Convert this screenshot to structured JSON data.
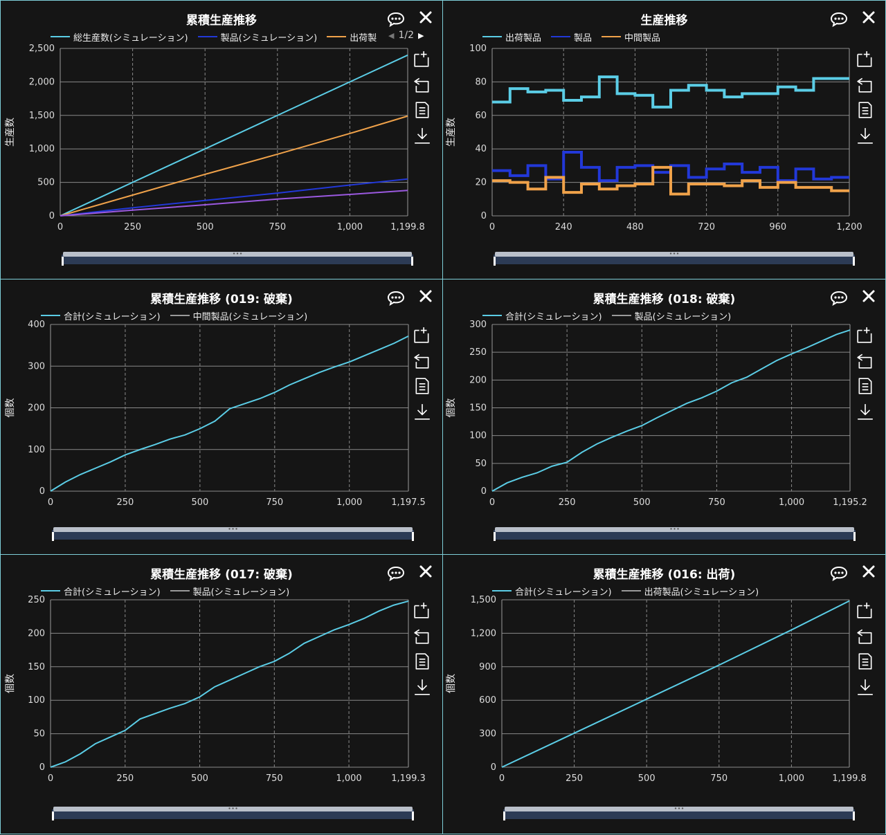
{
  "panels": [
    {
      "title": "累積生産推移",
      "legend": [
        {
          "label": "総生産数(シミュレーション)",
          "color": "#5bcde6"
        },
        {
          "label": "製品(シミュレーション)",
          "color": "#2238d8"
        },
        {
          "label": "出荷製",
          "color": "#f0a24a"
        }
      ],
      "pager": "1/2"
    },
    {
      "title": "生産推移",
      "legend": [
        {
          "label": "出荷製品",
          "color": "#5bcde6"
        },
        {
          "label": "製品",
          "color": "#2238d8"
        },
        {
          "label": "中間製品",
          "color": "#f0a24a"
        }
      ]
    },
    {
      "title": "累積生産推移 (019: 破棄)",
      "legend": [
        {
          "label": "合計(シミュレーション)",
          "color": "#5bcde6"
        },
        {
          "label": "中間製品(シミュレーション)",
          "color": "#9a9a9a"
        }
      ]
    },
    {
      "title": "累積生産推移 (018: 破棄)",
      "legend": [
        {
          "label": "合計(シミュレーション)",
          "color": "#5bcde6"
        },
        {
          "label": "製品(シミュレーション)",
          "color": "#9a9a9a"
        }
      ]
    },
    {
      "title": "累積生産推移 (017: 破棄)",
      "legend": [
        {
          "label": "合計(シミュレーション)",
          "color": "#5bcde6"
        },
        {
          "label": "製品(シミュレーション)",
          "color": "#9a9a9a"
        }
      ]
    },
    {
      "title": "累積生産推移 (016: 出荷)",
      "legend": [
        {
          "label": "合計(シミュレーション)",
          "color": "#5bcde6"
        },
        {
          "label": "出荷製品(シミュレーション)",
          "color": "#9a9a9a"
        }
      ]
    }
  ],
  "chart_data": [
    {
      "type": "line",
      "title": "累積生産推移",
      "ylabel": "生産数",
      "xlim": [
        0,
        1199.8
      ],
      "ylim": [
        0,
        2500
      ],
      "xticks": [
        0,
        250,
        500,
        750,
        1000,
        1199.8
      ],
      "xtick_labels": [
        "0",
        "250",
        "500",
        "750",
        "1,000",
        "1,199.8"
      ],
      "yticks": [
        0,
        500,
        1000,
        1500,
        2000,
        2500
      ],
      "ytick_labels": [
        "0",
        "500",
        "1,000",
        "1,500",
        "2,000",
        "2,500"
      ],
      "series": [
        {
          "name": "総生産数(シミュレーション)",
          "color": "#5bcde6",
          "x": [
            0,
            1199.8
          ],
          "y": [
            0,
            2400
          ]
        },
        {
          "name": "出荷製",
          "color": "#f0a24a",
          "x": [
            0,
            250,
            500,
            750,
            1000,
            1199.8
          ],
          "y": [
            0,
            310,
            620,
            920,
            1230,
            1490
          ]
        },
        {
          "name": "製品(シミュレーション)",
          "color": "#2238d8",
          "x": [
            0,
            250,
            500,
            750,
            1000,
            1199.8
          ],
          "y": [
            0,
            120,
            230,
            340,
            460,
            550
          ]
        },
        {
          "color": "#9b59e0",
          "x": [
            0,
            250,
            500,
            750,
            1000,
            1199.8
          ],
          "y": [
            0,
            85,
            165,
            250,
            320,
            380
          ]
        }
      ]
    },
    {
      "type": "line",
      "title": "生産推移",
      "ylabel": "生産数",
      "step": true,
      "xlim": [
        0,
        1200
      ],
      "ylim": [
        0,
        100
      ],
      "xticks": [
        0,
        240,
        480,
        720,
        960,
        1200
      ],
      "xtick_labels": [
        "0",
        "240",
        "480",
        "720",
        "960",
        "1,200"
      ],
      "yticks": [
        0,
        20,
        40,
        60,
        80,
        100
      ],
      "ytick_labels": [
        "0",
        "20",
        "40",
        "60",
        "80",
        "100"
      ],
      "series": [
        {
          "name": "出荷製品",
          "color": "#5bcde6",
          "x": [
            0,
            60,
            120,
            180,
            240,
            300,
            360,
            420,
            480,
            540,
            600,
            660,
            720,
            780,
            840,
            900,
            960,
            1020,
            1080,
            1140,
            1200
          ],
          "y": [
            68,
            76,
            74,
            75,
            69,
            71,
            83,
            73,
            72,
            65,
            75,
            78,
            75,
            71,
            73,
            73,
            77,
            75,
            82,
            82,
            82
          ]
        },
        {
          "name": "製品",
          "color": "#2238d8",
          "x": [
            0,
            60,
            120,
            180,
            240,
            300,
            360,
            420,
            480,
            540,
            600,
            660,
            720,
            780,
            840,
            900,
            960,
            1020,
            1080,
            1140,
            1200
          ],
          "y": [
            27,
            24,
            30,
            22,
            38,
            29,
            21,
            29,
            30,
            26,
            30,
            23,
            28,
            31,
            26,
            29,
            21,
            28,
            22,
            23,
            23
          ]
        },
        {
          "name": "中間製品",
          "color": "#f0a24a",
          "x": [
            0,
            60,
            120,
            180,
            240,
            300,
            360,
            420,
            480,
            540,
            600,
            660,
            720,
            780,
            840,
            900,
            960,
            1020,
            1080,
            1140,
            1200
          ],
          "y": [
            21,
            20,
            16,
            23,
            14,
            19,
            16,
            18,
            19,
            29,
            13,
            19,
            19,
            18,
            21,
            17,
            20,
            17,
            17,
            15,
            15
          ]
        }
      ]
    },
    {
      "type": "line",
      "title": "累積生産推移 (019: 破棄)",
      "ylabel": "個数",
      "xlim": [
        0,
        1197.5
      ],
      "ylim": [
        0,
        400
      ],
      "xticks": [
        0,
        250,
        500,
        750,
        1000,
        1197.5
      ],
      "xtick_labels": [
        "0",
        "250",
        "500",
        "750",
        "1,000",
        "1,197.5"
      ],
      "yticks": [
        0,
        100,
        200,
        300,
        400
      ],
      "ytick_labels": [
        "0",
        "100",
        "200",
        "300",
        "400"
      ],
      "series": [
        {
          "name": "合計(シミュレーション)",
          "color": "#5bcde6",
          "x": [
            0,
            50,
            100,
            150,
            200,
            250,
            300,
            350,
            400,
            450,
            500,
            550,
            600,
            650,
            700,
            750,
            800,
            850,
            900,
            950,
            1000,
            1050,
            1100,
            1150,
            1197.5
          ],
          "y": [
            0,
            22,
            40,
            55,
            70,
            87,
            100,
            112,
            125,
            135,
            150,
            168,
            198,
            210,
            222,
            237,
            255,
            270,
            285,
            298,
            310,
            325,
            340,
            355,
            372
          ]
        }
      ]
    },
    {
      "type": "line",
      "title": "累積生産推移 (018: 破棄)",
      "ylabel": "個数",
      "xlim": [
        0,
        1195.2
      ],
      "ylim": [
        0,
        300
      ],
      "xticks": [
        0,
        250,
        500,
        750,
        1000,
        1195.2
      ],
      "xtick_labels": [
        "0",
        "250",
        "500",
        "750",
        "1,000",
        "1,195.2"
      ],
      "yticks": [
        0,
        50,
        100,
        150,
        200,
        250,
        300
      ],
      "ytick_labels": [
        "0",
        "50",
        "100",
        "150",
        "200",
        "250",
        "300"
      ],
      "series": [
        {
          "name": "合計(シミュレーション)",
          "color": "#5bcde6",
          "x": [
            0,
            50,
            100,
            150,
            200,
            250,
            300,
            350,
            400,
            450,
            500,
            550,
            600,
            650,
            700,
            750,
            800,
            850,
            900,
            950,
            1000,
            1050,
            1100,
            1150,
            1195.2
          ],
          "y": [
            0,
            15,
            25,
            33,
            45,
            52,
            70,
            85,
            97,
            108,
            118,
            132,
            145,
            158,
            168,
            180,
            195,
            205,
            220,
            235,
            247,
            258,
            270,
            282,
            290
          ]
        }
      ]
    },
    {
      "type": "line",
      "title": "累積生産推移 (017: 破棄)",
      "ylabel": "個数",
      "xlim": [
        0,
        1199.3
      ],
      "ylim": [
        0,
        250
      ],
      "xticks": [
        0,
        250,
        500,
        750,
        1000,
        1199.3
      ],
      "xtick_labels": [
        "0",
        "250",
        "500",
        "750",
        "1,000",
        "1,199.3"
      ],
      "yticks": [
        0,
        50,
        100,
        150,
        200,
        250
      ],
      "ytick_labels": [
        "0",
        "50",
        "100",
        "150",
        "200",
        "250"
      ],
      "series": [
        {
          "name": "合計(シミュレーション)",
          "color": "#5bcde6",
          "x": [
            0,
            50,
            100,
            150,
            200,
            250,
            300,
            350,
            400,
            450,
            500,
            550,
            600,
            650,
            700,
            750,
            800,
            850,
            900,
            950,
            1000,
            1050,
            1100,
            1150,
            1199.3
          ],
          "y": [
            0,
            8,
            20,
            35,
            45,
            55,
            72,
            80,
            88,
            95,
            105,
            120,
            130,
            140,
            150,
            158,
            170,
            185,
            195,
            205,
            213,
            222,
            233,
            242,
            248
          ]
        }
      ]
    },
    {
      "type": "line",
      "title": "累積生産推移 (016: 出荷)",
      "ylabel": "個数",
      "xlim": [
        0,
        1199.8
      ],
      "ylim": [
        0,
        1500
      ],
      "xticks": [
        0,
        250,
        500,
        750,
        1000,
        1199.8
      ],
      "xtick_labels": [
        "0",
        "250",
        "500",
        "750",
        "1,000",
        "1,199.8"
      ],
      "yticks": [
        0,
        300,
        600,
        900,
        1200,
        1500
      ],
      "ytick_labels": [
        "0",
        "300",
        "600",
        "900",
        "1,200",
        "1,500"
      ],
      "series": [
        {
          "name": "合計(シミュレーション)",
          "color": "#5bcde6",
          "x": [
            0,
            250,
            500,
            750,
            1000,
            1199.8
          ],
          "y": [
            0,
            305,
            610,
            915,
            1230,
            1490
          ]
        }
      ]
    }
  ]
}
